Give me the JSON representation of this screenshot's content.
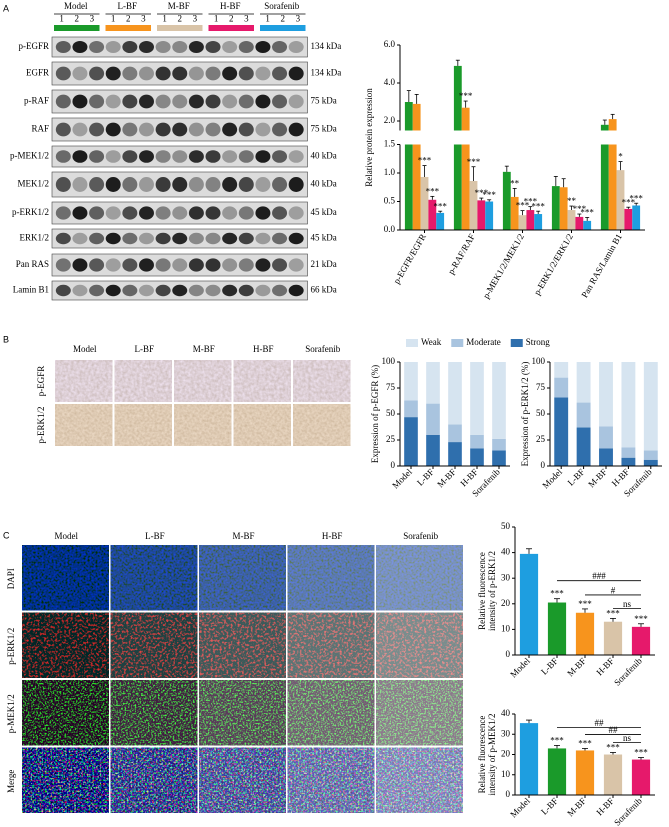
{
  "panel_labels": [
    "A",
    "B",
    "C"
  ],
  "blot": {
    "groups": [
      {
        "name": "Model",
        "color": "#1a9a2a"
      },
      {
        "name": "L-BF",
        "color": "#f7941d"
      },
      {
        "name": "M-BF",
        "color": "#d9c4a8"
      },
      {
        "name": "H-BF",
        "color": "#e6196b"
      },
      {
        "name": "Sorafenib",
        "color": "#1e9ee0"
      }
    ],
    "lanes": [
      "1",
      "2",
      "3"
    ],
    "rows": [
      {
        "label": "p-EGFR",
        "size": "134 kDa"
      },
      {
        "label": "EGFR",
        "size": "134 kDa"
      },
      {
        "label": "p-RAF",
        "size": "75 kDa"
      },
      {
        "label": "RAF",
        "size": "75 kDa"
      },
      {
        "label": "p-MEK1/2",
        "size": "40 kDa"
      },
      {
        "label": "MEK1/2",
        "size": "40 kDa"
      },
      {
        "label": "p-ERK1/2",
        "size": "45 kDa"
      },
      {
        "label": "ERK1/2",
        "size": "45 kDa"
      },
      {
        "label": "Pan RAS",
        "size": "21 kDa"
      },
      {
        "label": "Lamin B1",
        "size": "66 kDa"
      }
    ]
  },
  "ihc": {
    "columns": [
      "Model",
      "L-BF",
      "M-BF",
      "H-BF",
      "Sorafenib"
    ],
    "rows": [
      "p-EGFR",
      "p-ERK1/2"
    ]
  },
  "fluorescence": {
    "columns": [
      "Model",
      "L-BF",
      "M-BF",
      "H-BF",
      "Sorafenib"
    ],
    "rows": [
      "DAPI",
      "p-ERK1/2",
      "p-MEK1/2",
      "Merge"
    ]
  },
  "chart_data": [
    {
      "type": "bar",
      "ylabel": "Relative protein expression",
      "categories": [
        "p-EGFR/EGFR",
        "p-RAF/RAF",
        "p-MEK1/2/MEK1/2",
        "p-ERK1/2/ERK1/2",
        "Pan RAS/Lamin B1"
      ],
      "series": [
        {
          "color": "#1a9a2a",
          "values": [
            3.0,
            4.9,
            1.02,
            0.77,
            1.8
          ],
          "errors": [
            0.6,
            0.3,
            0.1,
            0.17,
            0.25
          ],
          "significance": [
            null,
            null,
            null,
            null,
            null
          ]
        },
        {
          "color": "#f7941d",
          "values": [
            2.9,
            2.7,
            0.58,
            0.75,
            2.1
          ],
          "errors": [
            0.5,
            0.35,
            0.15,
            0.15,
            0.25
          ],
          "significance": [
            null,
            "***",
            "**",
            null,
            null
          ]
        },
        {
          "color": "#d9c4a8",
          "values": [
            0.93,
            0.86,
            0.26,
            0.35,
            1.05
          ],
          "errors": [
            0.2,
            0.25,
            0.08,
            0.07,
            0.15
          ],
          "significance": [
            "***",
            "***",
            "***",
            "**",
            "*"
          ]
        },
        {
          "color": "#e6196b",
          "values": [
            0.53,
            0.52,
            0.35,
            0.23,
            0.37
          ],
          "errors": [
            0.06,
            0.04,
            0.06,
            0.05,
            0.03
          ],
          "significance": [
            "***",
            "***",
            "***",
            "***",
            "***"
          ]
        },
        {
          "color": "#1e9ee0",
          "values": [
            0.3,
            0.5,
            0.28,
            0.16,
            0.43
          ],
          "errors": [
            0.03,
            0.03,
            0.05,
            0.06,
            0.04
          ],
          "significance": [
            "***",
            "***",
            "***",
            "***",
            "***"
          ]
        }
      ],
      "ylim": [
        0,
        6
      ],
      "ybreak": 1.5,
      "yticks": [
        {
          "value": 0,
          "label": "0.0"
        },
        0.5,
        {
          "value": 1,
          "label": "1.0"
        },
        1.5,
        {
          "value": 2,
          "label": "2.0"
        },
        {
          "value": 4,
          "label": "4.0"
        },
        {
          "value": 6,
          "label": "6.0"
        }
      ]
    },
    {
      "type": "stacked_bar",
      "ylabel": "Expression of p-EGFR (%)",
      "legend": "top",
      "categories": [
        "Model",
        "L-BF",
        "M-BF",
        "H-BF",
        "Sorafenib"
      ],
      "series": [
        {
          "name": "Weak",
          "color": "#d6e4f0",
          "values": [
            37,
            40,
            60,
            70,
            74
          ]
        },
        {
          "name": "Moderate",
          "color": "#a9c4df",
          "values": [
            16,
            30,
            17,
            13,
            11
          ]
        },
        {
          "name": "Strong",
          "color": "#2f6fad",
          "values": [
            47,
            30,
            23,
            17,
            15
          ]
        }
      ],
      "ylim": [
        0,
        100
      ],
      "yticks": [
        0,
        25,
        50,
        75,
        100
      ]
    },
    {
      "type": "stacked_bar",
      "ylabel": "Expression of p-ERK1/2 (%)",
      "categories": [
        "Model",
        "L-BF",
        "M-BF",
        "H-BF",
        "Sorafenib"
      ],
      "series": [
        {
          "color": "#d6e4f0",
          "values": [
            15,
            39,
            62,
            82,
            85
          ]
        },
        {
          "color": "#a9c4df",
          "values": [
            19,
            24,
            21,
            10,
            9
          ]
        },
        {
          "color": "#2f6fad",
          "values": [
            66,
            37,
            17,
            8,
            6
          ]
        }
      ],
      "ylim": [
        0,
        100
      ],
      "yticks": [
        0,
        25,
        50,
        75,
        100
      ]
    },
    {
      "type": "bar",
      "ylabel": [
        "Relative fluorescence",
        "intensity of p-ERK1/2"
      ],
      "categories": [
        "Model",
        "L-BF",
        "M-BF",
        "H-BF",
        "Sorafenib"
      ],
      "values": [
        39.5,
        20.5,
        16.5,
        13,
        11
      ],
      "errors": [
        2,
        1.5,
        1.5,
        1.3,
        1.2
      ],
      "colors": [
        "#1e9ee0",
        "#1a9a2a",
        "#f7941d",
        "#d9c4a8",
        "#e6196b"
      ],
      "significance": [
        null,
        "***",
        "***",
        "***",
        "***"
      ],
      "comparisons": [
        {
          "from": 1,
          "to": 4,
          "label": "###"
        },
        {
          "from": 2,
          "to": 4,
          "label": "#"
        },
        {
          "from": 3,
          "to": 4,
          "label": "ns"
        }
      ],
      "ylim": [
        0,
        50
      ],
      "yticks": [
        0,
        10,
        20,
        30,
        40,
        50
      ]
    },
    {
      "type": "bar",
      "ylabel": [
        "Relative fluorescence",
        "intensity of p-MEK1/2"
      ],
      "categories": [
        "Model",
        "L-BF",
        "M-BF",
        "H-BF",
        "Sorafenib"
      ],
      "values": [
        35.5,
        23,
        22,
        20,
        17.5
      ],
      "errors": [
        1.5,
        1.5,
        1,
        1,
        1
      ],
      "colors": [
        "#1e9ee0",
        "#1a9a2a",
        "#f7941d",
        "#d9c4a8",
        "#e6196b"
      ],
      "significance": [
        null,
        "***",
        "***",
        "***",
        "***"
      ],
      "comparisons": [
        {
          "from": 1,
          "to": 4,
          "label": "##"
        },
        {
          "from": 2,
          "to": 4,
          "label": "##"
        },
        {
          "from": 3,
          "to": 4,
          "label": "ns"
        }
      ],
      "ylim": [
        0,
        40
      ],
      "yticks": [
        0,
        10,
        20,
        30,
        40
      ]
    }
  ]
}
